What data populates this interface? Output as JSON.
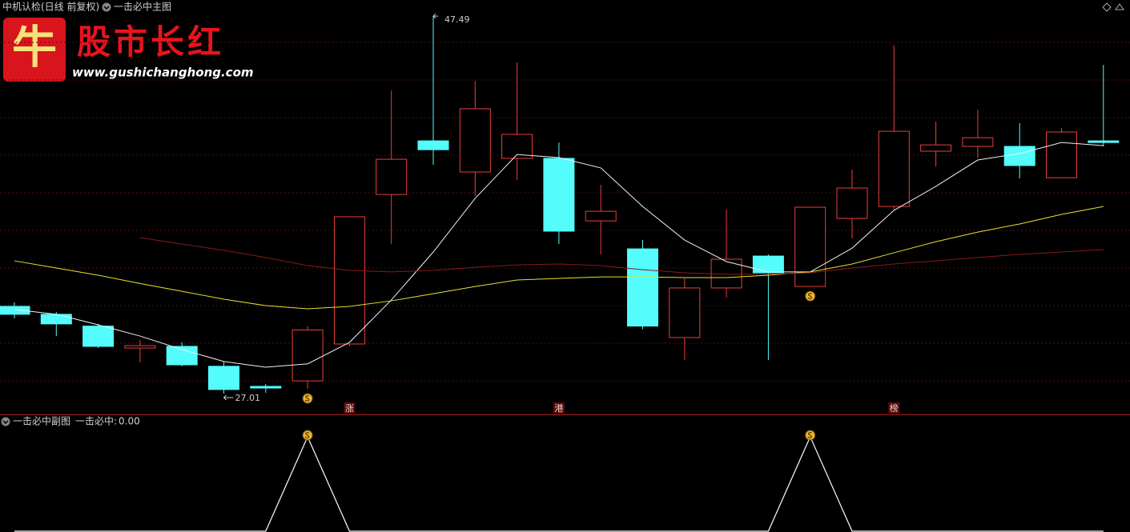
{
  "header": {
    "title": "中机认检(日线 前复权)",
    "main_indicator": "一击必中主图"
  },
  "logo": {
    "icon": "牛",
    "name": "股市长红",
    "url": "www.gushichanghong.com"
  },
  "chart_data": [
    {
      "type": "candlestick",
      "open": [
        31.74,
        31.31,
        30.67,
        29.48,
        29.57,
        28.49,
        27.4,
        27.7,
        29.7,
        37.81,
        40.72,
        39.03,
        39.77,
        39.77,
        36.38,
        34.86,
        30.05,
        32.74,
        34.47,
        32.82,
        36.51,
        37.16,
        40.16,
        40.42,
        40.42,
        38.72,
        40.72
      ],
      "high": [
        31.96,
        31.44,
        30.79,
        29.92,
        29.79,
        28.75,
        27.53,
        30.67,
        36.6,
        43.45,
        47.49,
        43.98,
        44.97,
        40.63,
        38.33,
        35.34,
        33.26,
        36.99,
        34.56,
        37.12,
        39.16,
        45.88,
        41.76,
        42.41,
        41.68,
        41.42,
        44.84
      ],
      "low": [
        31.09,
        30.13,
        29.48,
        28.7,
        28.49,
        27.01,
        27.05,
        27.27,
        29.57,
        35.12,
        39.42,
        37.73,
        38.59,
        35.12,
        34.56,
        30.5,
        28.83,
        32.22,
        28.83,
        32.82,
        35.43,
        36.99,
        39.33,
        39.81,
        38.68,
        38.72,
        40.42
      ],
      "close": [
        31.31,
        30.79,
        29.57,
        29.61,
        28.57,
        27.23,
        27.31,
        30.46,
        36.6,
        39.72,
        40.24,
        42.46,
        41.07,
        35.82,
        36.9,
        30.67,
        32.74,
        34.3,
        33.56,
        37.12,
        38.16,
        41.24,
        40.5,
        40.89,
        39.38,
        41.2,
        40.63
      ],
      "up_color": "#e8403c",
      "down_color": "#54fcfc",
      "series": [
        {
          "color": "#f0f0f0",
          "values": [
            31.57,
            31.31,
            30.74,
            30.13,
            29.4,
            28.75,
            28.44,
            28.62,
            29.79,
            32.09,
            34.69,
            37.6,
            39.98,
            39.81,
            39.25,
            37.16,
            35.34,
            34.17,
            33.61,
            33.61,
            34.9,
            36.95,
            38.25,
            39.68,
            40.03,
            40.63,
            40.46
          ]
        },
        {
          "color": "#e8e030",
          "values": [
            34.21,
            33.82,
            33.43,
            32.98,
            32.56,
            32.13,
            31.78,
            31.61,
            31.74,
            32.04,
            32.43,
            32.82,
            33.17,
            33.26,
            33.34,
            33.34,
            33.3,
            33.3,
            33.43,
            33.61,
            34.04,
            34.65,
            35.25,
            35.77,
            36.21,
            36.73,
            37.16
          ]
        },
        {
          "color": "#8a1a1a",
          "values": [
            null,
            null,
            null,
            35.47,
            35.12,
            34.78,
            34.39,
            33.95,
            33.69,
            33.61,
            33.69,
            33.86,
            33.99,
            34.04,
            33.95,
            33.73,
            33.56,
            33.48,
            33.48,
            33.56,
            33.82,
            34.04,
            34.21,
            34.39,
            34.56,
            34.69,
            34.82
          ]
        }
      ],
      "tags": [
        null,
        null,
        null,
        null,
        null,
        null,
        null,
        null,
        "涨",
        null,
        null,
        null,
        null,
        "港",
        null,
        null,
        null,
        null,
        null,
        null,
        null,
        "榜",
        null,
        null,
        null,
        null,
        null
      ],
      "ylim": [
        25.88,
        47.58
      ]
    },
    {
      "type": "line",
      "title": "一击必中副图",
      "indicator_name": "一击必中:",
      "indicator_value": {
        "value": 0,
        "label": "0.00"
      },
      "color": "#ffffff",
      "values": [
        0,
        0,
        0,
        0,
        0,
        0,
        0,
        1,
        0,
        0,
        0,
        0,
        0,
        0,
        0,
        0,
        0,
        0,
        0,
        1,
        0,
        0,
        0,
        0,
        0,
        0,
        0
      ],
      "ylim": [
        0,
        1.22
      ]
    }
  ]
}
